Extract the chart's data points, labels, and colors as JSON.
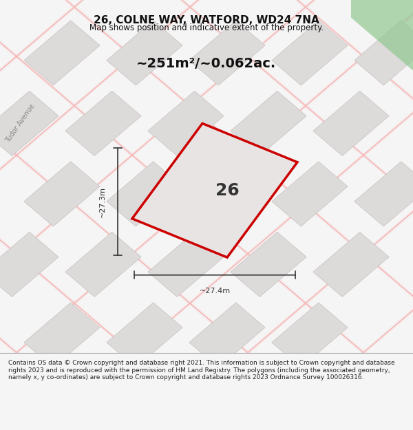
{
  "title": "26, COLNE WAY, WATFORD, WD24 7NA",
  "subtitle": "Map shows position and indicative extent of the property.",
  "area_text": "~251m²/~0.062ac.",
  "label_26": "26",
  "dim_h": "~27.3m",
  "dim_w": "~27.4m",
  "road_label": "Tudor Avenue",
  "footer": "Contains OS data © Crown copyright and database right 2021. This information is subject to Crown copyright and database rights 2023 and is reproduced with the permission of HM Land Registry. The polygons (including the associated geometry, namely x, y co-ordinates) are subject to Crown copyright and database rights 2023 Ordnance Survey 100026316.",
  "bg_color": "#f5f5f5",
  "map_bg": "#f0eeee",
  "plot_fill": "#e8e4e4",
  "plot_outline": "#cc0000",
  "block_fill": "#dddada",
  "block_outline": "#c8c0c0",
  "road_line": "#f5b8b8",
  "green_fill": "#90c890",
  "dim_color": "#333333",
  "title_color": "#111111",
  "footer_color": "#222222"
}
